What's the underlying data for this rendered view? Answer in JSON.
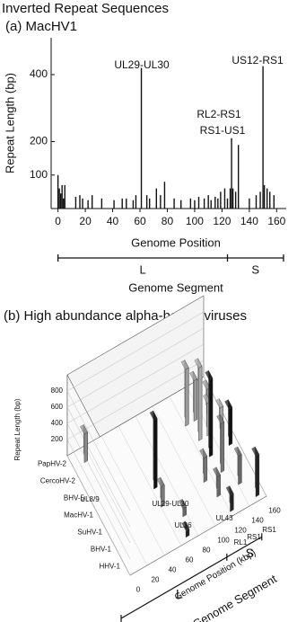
{
  "figure_title": "Inverted Repeat Sequences",
  "chart_data": [
    {
      "type": "spike",
      "title": "(a) MacHV1",
      "xlabel": "Genome Position",
      "ylabel": "Repeat Length (bp)",
      "color": "#111111",
      "x": [
        0,
        1,
        2,
        3,
        4,
        5,
        13,
        16,
        18,
        22,
        25,
        32,
        41,
        47,
        50,
        55,
        57,
        61,
        65,
        67,
        72,
        75,
        78,
        85,
        90,
        97,
        100,
        103,
        107,
        110,
        112,
        115,
        117,
        119,
        122,
        124,
        126,
        127,
        128,
        130,
        132,
        140,
        145,
        148,
        150,
        151,
        153,
        155,
        158
      ],
      "values": [
        100,
        60,
        45,
        70,
        30,
        70,
        35,
        40,
        30,
        25,
        40,
        30,
        25,
        30,
        30,
        25,
        40,
        420,
        40,
        30,
        60,
        40,
        80,
        30,
        25,
        30,
        25,
        35,
        30,
        40,
        25,
        35,
        30,
        50,
        60,
        30,
        60,
        210,
        60,
        50,
        190,
        30,
        40,
        50,
        425,
        70,
        60,
        50,
        40
      ],
      "xlim": [
        -5,
        167
      ],
      "ylim": [
        0,
        510
      ],
      "xticks": [
        0,
        20,
        40,
        60,
        80,
        100,
        120,
        140,
        160
      ],
      "yticks": [
        100,
        200,
        400
      ],
      "annotations": [
        "UL29-UL30",
        "RL2-RS1",
        "RS1-US1",
        "US12-RS1"
      ],
      "segment_label": "Genome Segment",
      "segment_names": [
        "L",
        "S"
      ],
      "segment_bounds": [
        0,
        124,
        165
      ]
    },
    {
      "type": "bar3d",
      "title": "(b) High abundance alpha-herpesviruses",
      "xlabel": "Genome Position (kbp)",
      "zlabel": "Repeat Length (bp)",
      "xlim": [
        0,
        160
      ],
      "xticks": [
        0,
        20,
        40,
        60,
        80,
        100,
        120,
        140,
        160
      ],
      "zlim": [
        0,
        1000
      ],
      "zticks": [
        200,
        400,
        600,
        800
      ],
      "series": [
        {
          "name": "PapHV-2",
          "color": "#8a8a8a",
          "x": [
            12
          ],
          "values": [
            350
          ]
        },
        {
          "name": "CercoHV-2",
          "color": "#9a9a9a",
          "x": [
            120,
            130,
            145
          ],
          "values": [
            700,
            500,
            300
          ]
        },
        {
          "name": "BHV-5",
          "color": "#a8a8a8",
          "x": [
            125,
            135,
            150
          ],
          "values": [
            900,
            400,
            250
          ]
        },
        {
          "name": "MacHV-1",
          "color": "#111111",
          "x": [
            62,
            127,
            150
          ],
          "values": [
            850,
            950,
            450
          ]
        },
        {
          "name": "SuHV-1",
          "color": "#777777",
          "x": [
            60,
            110,
            130
          ],
          "values": [
            250,
            300,
            600
          ]
        },
        {
          "name": "BHV-1",
          "color": "#666666",
          "x": [
            75,
            115,
            140
          ],
          "values": [
            100,
            250,
            350
          ]
        },
        {
          "name": "HHV-1",
          "color": "#222222",
          "x": [
            68,
            120,
            150
          ],
          "values": [
            80,
            200,
            500
          ]
        }
      ],
      "annotations": [
        "UL8/9",
        "UL29-UL30",
        "UL36",
        "UL43",
        "RL1",
        "RS1",
        "RS1"
      ],
      "segment_label": "Genome Segment",
      "segment_names": [
        "L",
        "S"
      ],
      "segment_bounds": [
        0,
        124,
        165
      ]
    }
  ]
}
